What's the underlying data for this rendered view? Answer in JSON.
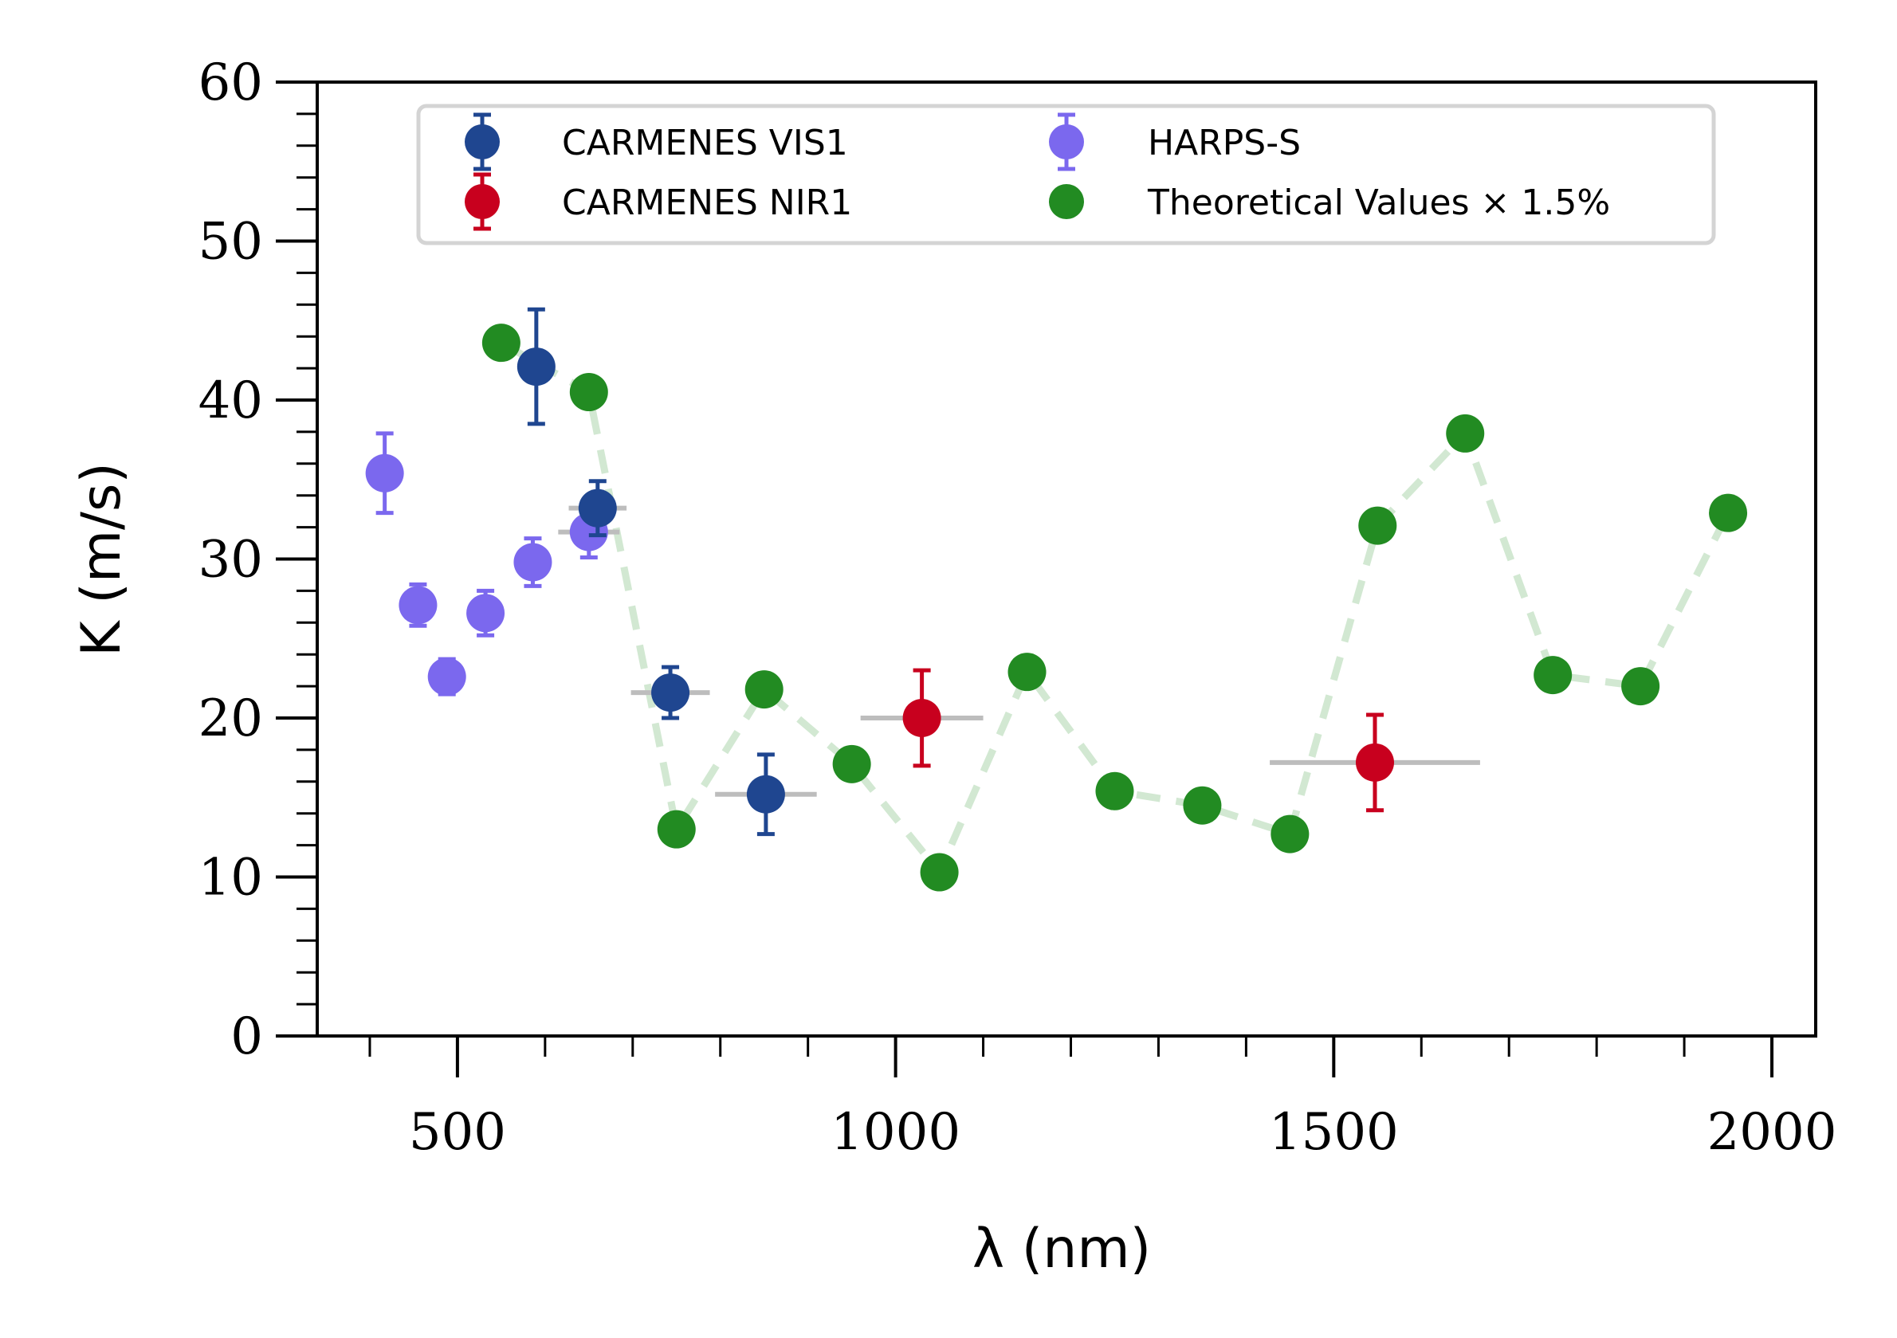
{
  "chart_data": {
    "type": "scatter",
    "xlabel": "λ (nm)",
    "ylabel": "K (m/s)",
    "xlim": [
      340,
      2050
    ],
    "ylim": [
      0,
      60
    ],
    "x_ticks": [
      500,
      1000,
      1500,
      2000
    ],
    "y_ticks": [
      0,
      10,
      20,
      30,
      40,
      50,
      60
    ],
    "x_tick_labels": [
      "500",
      "1000",
      "1500",
      "2000"
    ],
    "y_tick_labels": [
      "0",
      "10",
      "20",
      "30",
      "40",
      "50",
      "60"
    ],
    "legend_position": "upper center",
    "series": [
      {
        "name": "CARMENES VIS1",
        "color": "#1f4690",
        "points": [
          {
            "x": 590,
            "y": 42.1,
            "yerr": 3.6,
            "xerr": 20
          },
          {
            "x": 660,
            "y": 33.2,
            "yerr": 1.7,
            "xerr": 33
          },
          {
            "x": 743,
            "y": 21.6,
            "yerr": 1.6,
            "xerr": 45
          },
          {
            "x": 852,
            "y": 15.2,
            "yerr": 2.5,
            "xerr": 58
          }
        ]
      },
      {
        "name": "CARMENES NIR1",
        "color": "#c8001e",
        "points": [
          {
            "x": 1030,
            "y": 20.0,
            "yerr": 3.0,
            "xerr": 70
          },
          {
            "x": 1547,
            "y": 17.2,
            "yerr": 3.0,
            "xerr": 120
          }
        ]
      },
      {
        "name": "HARPS-S",
        "color": "#7b68ee",
        "points": [
          {
            "x": 417,
            "y": 35.4,
            "yerr": 2.5
          },
          {
            "x": 455,
            "y": 27.1,
            "yerr": 1.3
          },
          {
            "x": 488,
            "y": 22.6,
            "yerr": 1.1
          },
          {
            "x": 532,
            "y": 26.6,
            "yerr": 1.4
          },
          {
            "x": 586,
            "y": 29.8,
            "yerr": 1.5
          },
          {
            "x": 650,
            "y": 31.7,
            "yerr": 1.6,
            "xerr": 35
          }
        ]
      },
      {
        "name": "Theoretical Values × 1.5%",
        "color": "#228b22",
        "line_color": "#d2e8d2",
        "points": [
          {
            "x": 550,
            "y": 43.6
          },
          {
            "x": 650,
            "y": 40.5
          },
          {
            "x": 750,
            "y": 13.0
          },
          {
            "x": 850,
            "y": 21.8
          },
          {
            "x": 950,
            "y": 17.1
          },
          {
            "x": 1050,
            "y": 10.3
          },
          {
            "x": 1150,
            "y": 22.9
          },
          {
            "x": 1250,
            "y": 15.4
          },
          {
            "x": 1350,
            "y": 14.5
          },
          {
            "x": 1450,
            "y": 12.7
          },
          {
            "x": 1550,
            "y": 32.1
          },
          {
            "x": 1650,
            "y": 37.9
          },
          {
            "x": 1750,
            "y": 22.7
          },
          {
            "x": 1850,
            "y": 22.0
          },
          {
            "x": 1950,
            "y": 32.9
          }
        ]
      }
    ]
  }
}
